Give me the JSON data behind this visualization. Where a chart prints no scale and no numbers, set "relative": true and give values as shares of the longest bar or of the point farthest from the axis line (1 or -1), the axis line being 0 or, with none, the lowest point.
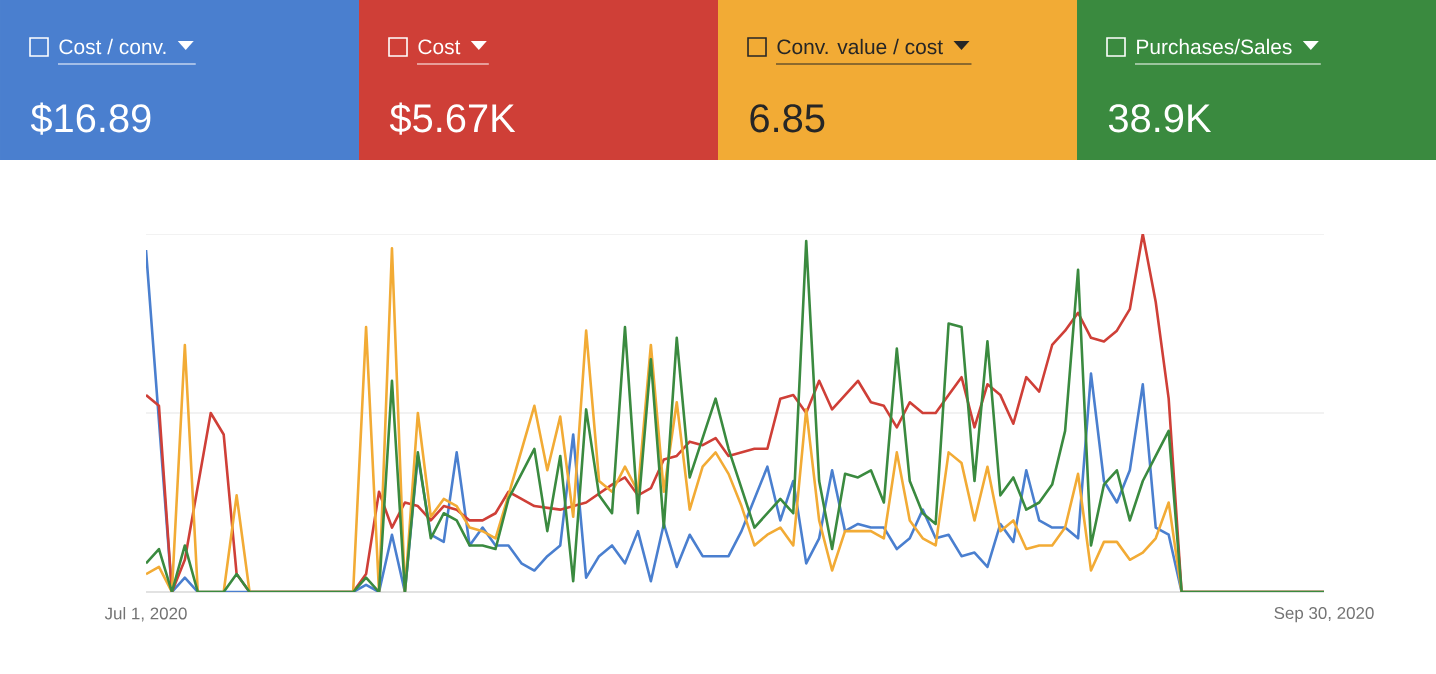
{
  "chart_data": {
    "type": "line",
    "relative": true,
    "legend": "top",
    "line_style": "solid",
    "ref_lines": [
      {
        "axis": "y",
        "value": 0.5,
        "color": "#e5e5e5"
      },
      {
        "axis": "y",
        "value": 1,
        "color": "#e5e5e5"
      }
    ],
    "xlim": [
      "2020-07-01",
      "2020-09-30"
    ],
    "xticks": [
      {
        "value": "2020-07-01",
        "label": "Jul 1, 2020"
      },
      {
        "value": "2020-09-30",
        "label": "Sep 30, 2020"
      }
    ],
    "annotations": [
      "$16.89",
      "$5.67K",
      "6.85",
      "38.9K"
    ],
    "series": [
      {
        "name": "Cost / conv.",
        "color": "#4a7fcf",
        "x": [
          "2020-07-01",
          "2020-07-03",
          "2020-07-04",
          "2020-07-05",
          "2020-07-17",
          "2020-07-18",
          "2020-07-19",
          "2020-07-20",
          "2020-07-21",
          "2020-07-22",
          "2020-07-23",
          "2020-07-24",
          "2020-07-25",
          "2020-07-26",
          "2020-07-27",
          "2020-07-28",
          "2020-07-29",
          "2020-07-30",
          "2020-07-31",
          "2020-08-01",
          "2020-08-02",
          "2020-08-03",
          "2020-08-04",
          "2020-08-05",
          "2020-08-06",
          "2020-08-07",
          "2020-08-08",
          "2020-08-09",
          "2020-08-10",
          "2020-08-11",
          "2020-08-12",
          "2020-08-13",
          "2020-08-15",
          "2020-08-16",
          "2020-08-18",
          "2020-08-19",
          "2020-08-20",
          "2020-08-21",
          "2020-08-22",
          "2020-08-23",
          "2020-08-24",
          "2020-08-25",
          "2020-08-26",
          "2020-08-27",
          "2020-08-28",
          "2020-08-29",
          "2020-08-30",
          "2020-08-31",
          "2020-09-01",
          "2020-09-02",
          "2020-09-03",
          "2020-09-04",
          "2020-09-05",
          "2020-09-06",
          "2020-09-07",
          "2020-09-08",
          "2020-09-09",
          "2020-09-10",
          "2020-09-11",
          "2020-09-12",
          "2020-09-13",
          "2020-09-14",
          "2020-09-15",
          "2020-09-16",
          "2020-09-17",
          "2020-09-18",
          "2020-09-19",
          "2020-09-30"
        ],
        "values": [
          0.955,
          0,
          0.04,
          0,
          0,
          0.02,
          0,
          0.16,
          0,
          0.38,
          0.16,
          0.14,
          0.39,
          0.13,
          0.18,
          0.13,
          0.13,
          0.08,
          0.06,
          0.1,
          0.13,
          0.44,
          0.04,
          0.1,
          0.13,
          0.08,
          0.17,
          0.03,
          0.19,
          0.07,
          0.16,
          0.1,
          0.1,
          0.17,
          0.35,
          0.2,
          0.31,
          0.08,
          0.15,
          0.34,
          0.17,
          0.19,
          0.18,
          0.18,
          0.12,
          0.15,
          0.23,
          0.15,
          0.16,
          0.1,
          0.11,
          0.07,
          0.19,
          0.14,
          0.34,
          0.2,
          0.18,
          0.18,
          0.15,
          0.61,
          0.31,
          0.25,
          0.34,
          0.58,
          0.18,
          0.16,
          0,
          0
        ]
      },
      {
        "name": "Cost",
        "color": "#cf3f37",
        "x": [
          "2020-07-01",
          "2020-07-02",
          "2020-07-03",
          "2020-07-04",
          "2020-07-06",
          "2020-07-07",
          "2020-07-08",
          "2020-07-09",
          "2020-07-17",
          "2020-07-18",
          "2020-07-19",
          "2020-07-20",
          "2020-07-21",
          "2020-07-22",
          "2020-07-23",
          "2020-07-24",
          "2020-07-25",
          "2020-07-26",
          "2020-07-27",
          "2020-07-28",
          "2020-07-29",
          "2020-07-30",
          "2020-07-31",
          "2020-08-02",
          "2020-08-04",
          "2020-08-06",
          "2020-08-07",
          "2020-08-08",
          "2020-08-09",
          "2020-08-10",
          "2020-08-11",
          "2020-08-12",
          "2020-08-13",
          "2020-08-14",
          "2020-08-15",
          "2020-08-17",
          "2020-08-18",
          "2020-08-19",
          "2020-08-20",
          "2020-08-21",
          "2020-08-22",
          "2020-08-23",
          "2020-08-25",
          "2020-08-26",
          "2020-08-27",
          "2020-08-28",
          "2020-08-29",
          "2020-08-30",
          "2020-08-31",
          "2020-09-01",
          "2020-09-02",
          "2020-09-03",
          "2020-09-04",
          "2020-09-05",
          "2020-09-06",
          "2020-09-07",
          "2020-09-08",
          "2020-09-09",
          "2020-09-10",
          "2020-09-11",
          "2020-09-12",
          "2020-09-13",
          "2020-09-14",
          "2020-09-15",
          "2020-09-16",
          "2020-09-17",
          "2020-09-18",
          "2020-09-19",
          "2020-09-30"
        ],
        "values": [
          0.55,
          0.52,
          0,
          0.09,
          0.5,
          0.44,
          0.05,
          0,
          0,
          0.05,
          0.28,
          0.18,
          0.25,
          0.24,
          0.2,
          0.24,
          0.23,
          0.2,
          0.2,
          0.22,
          0.28,
          0.26,
          0.24,
          0.23,
          0.25,
          0.3,
          0.32,
          0.27,
          0.29,
          0.37,
          0.38,
          0.42,
          0.41,
          0.43,
          0.38,
          0.4,
          0.4,
          0.54,
          0.55,
          0.5,
          0.59,
          0.51,
          0.59,
          0.53,
          0.52,
          0.46,
          0.53,
          0.5,
          0.5,
          0.55,
          0.6,
          0.46,
          0.58,
          0.55,
          0.47,
          0.6,
          0.56,
          0.69,
          0.73,
          0.78,
          0.71,
          0.7,
          0.73,
          0.79,
          1,
          0.81,
          0.54,
          0,
          0
        ]
      },
      {
        "name": "Conv. value / cost",
        "color": "#f2ab35",
        "x": [
          "2020-07-01",
          "2020-07-02",
          "2020-07-03",
          "2020-07-04",
          "2020-07-05",
          "2020-07-07",
          "2020-07-08",
          "2020-07-09",
          "2020-07-17",
          "2020-07-18",
          "2020-07-19",
          "2020-07-20",
          "2020-07-21",
          "2020-07-22",
          "2020-07-23",
          "2020-07-24",
          "2020-07-25",
          "2020-07-26",
          "2020-07-27",
          "2020-07-28",
          "2020-07-29",
          "2020-07-31",
          "2020-08-01",
          "2020-08-02",
          "2020-08-03",
          "2020-08-04",
          "2020-08-05",
          "2020-08-06",
          "2020-08-07",
          "2020-08-08",
          "2020-08-09",
          "2020-08-10",
          "2020-08-11",
          "2020-08-12",
          "2020-08-13",
          "2020-08-14",
          "2020-08-15",
          "2020-08-16",
          "2020-08-17",
          "2020-08-18",
          "2020-08-19",
          "2020-08-20",
          "2020-08-21",
          "2020-08-22",
          "2020-08-23",
          "2020-08-24",
          "2020-08-25",
          "2020-08-26",
          "2020-08-27",
          "2020-08-28",
          "2020-08-29",
          "2020-08-30",
          "2020-08-31",
          "2020-09-01",
          "2020-09-02",
          "2020-09-03",
          "2020-09-04",
          "2020-09-05",
          "2020-09-06",
          "2020-09-07",
          "2020-09-08",
          "2020-09-09",
          "2020-09-10",
          "2020-09-11",
          "2020-09-12",
          "2020-09-13",
          "2020-09-14",
          "2020-09-15",
          "2020-09-16",
          "2020-09-17",
          "2020-09-18",
          "2020-09-19",
          "2020-09-30"
        ],
        "values": [
          0.05,
          0.07,
          0,
          0.69,
          0,
          0,
          0.27,
          0,
          0,
          0.74,
          0,
          0.96,
          0,
          0.5,
          0.21,
          0.26,
          0.24,
          0.18,
          0.17,
          0.15,
          0.27,
          0.52,
          0.34,
          0.49,
          0.21,
          0.73,
          0.31,
          0.28,
          0.35,
          0.28,
          0.69,
          0.28,
          0.53,
          0.23,
          0.35,
          0.39,
          0.33,
          0.24,
          0.13,
          0.16,
          0.18,
          0.13,
          0.51,
          0.2,
          0.06,
          0.17,
          0.17,
          0.17,
          0.15,
          0.39,
          0.2,
          0.15,
          0.13,
          0.39,
          0.36,
          0.2,
          0.35,
          0.17,
          0.2,
          0.12,
          0.13,
          0.13,
          0.18,
          0.33,
          0.06,
          0.14,
          0.14,
          0.09,
          0.11,
          0.15,
          0.25,
          0,
          0
        ]
      },
      {
        "name": "Purchases/Sales",
        "color": "#3a8a3f",
        "x": [
          "2020-07-01",
          "2020-07-02",
          "2020-07-03",
          "2020-07-04",
          "2020-07-05",
          "2020-07-07",
          "2020-07-08",
          "2020-07-09",
          "2020-07-17",
          "2020-07-18",
          "2020-07-19",
          "2020-07-20",
          "2020-07-21",
          "2020-07-22",
          "2020-07-23",
          "2020-07-24",
          "2020-07-25",
          "2020-07-26",
          "2020-07-27",
          "2020-07-28",
          "2020-07-29",
          "2020-07-31",
          "2020-08-01",
          "2020-08-02",
          "2020-08-03",
          "2020-08-04",
          "2020-08-05",
          "2020-08-06",
          "2020-08-07",
          "2020-08-08",
          "2020-08-09",
          "2020-08-10",
          "2020-08-11",
          "2020-08-12",
          "2020-08-14",
          "2020-08-15",
          "2020-08-17",
          "2020-08-18",
          "2020-08-19",
          "2020-08-20",
          "2020-08-21",
          "2020-08-22",
          "2020-08-23",
          "2020-08-24",
          "2020-08-25",
          "2020-08-26",
          "2020-08-27",
          "2020-08-28",
          "2020-08-29",
          "2020-08-30",
          "2020-08-31",
          "2020-09-01",
          "2020-09-02",
          "2020-09-03",
          "2020-09-04",
          "2020-09-05",
          "2020-09-06",
          "2020-09-07",
          "2020-09-08",
          "2020-09-09",
          "2020-09-10",
          "2020-09-11",
          "2020-09-12",
          "2020-09-13",
          "2020-09-14",
          "2020-09-15",
          "2020-09-16",
          "2020-09-17",
          "2020-09-18",
          "2020-09-19",
          "2020-09-30"
        ],
        "values": [
          0.08,
          0.12,
          0,
          0.13,
          0,
          0,
          0.05,
          0,
          0,
          0.04,
          0,
          0.59,
          0,
          0.39,
          0.15,
          0.22,
          0.2,
          0.13,
          0.13,
          0.12,
          0.26,
          0.4,
          0.17,
          0.38,
          0.03,
          0.51,
          0.27,
          0.22,
          0.74,
          0.22,
          0.65,
          0.18,
          0.71,
          0.32,
          0.54,
          0.4,
          0.18,
          0.22,
          0.26,
          0.22,
          0.98,
          0.31,
          0.12,
          0.33,
          0.32,
          0.34,
          0.25,
          0.68,
          0.31,
          0.22,
          0.19,
          0.75,
          0.74,
          0.31,
          0.7,
          0.27,
          0.32,
          0.23,
          0.25,
          0.3,
          0.45,
          0.9,
          0.13,
          0.3,
          0.34,
          0.2,
          0.31,
          0.38,
          0.45,
          0,
          0
        ]
      }
    ]
  }
}
